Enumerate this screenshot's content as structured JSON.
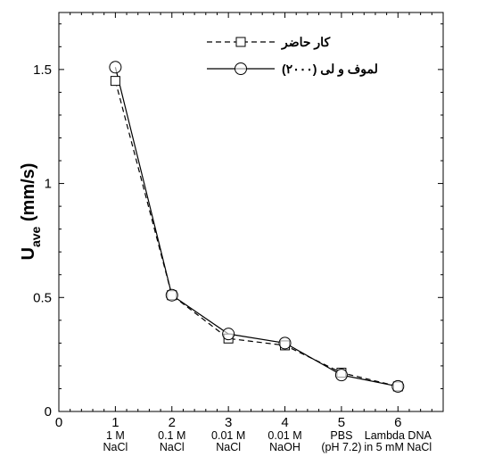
{
  "chart_data": {
    "type": "line",
    "ylabel": "U",
    "ylabel_sub": "ave",
    "ylabel_unit": " (mm/s)",
    "xlim": [
      0,
      6.8
    ],
    "ylim": [
      0,
      1.75
    ],
    "x_ticks": [
      0,
      1,
      2,
      3,
      4,
      5,
      6
    ],
    "y_ticks": [
      0,
      0.5,
      1,
      1.5
    ],
    "y_tick_labels": [
      "0",
      "0.5",
      "1",
      "1.5"
    ],
    "category_labels": [
      {
        "x": 1,
        "lines": [
          "1 M",
          "NaCl"
        ]
      },
      {
        "x": 2,
        "lines": [
          "0.1 M",
          "NaCl"
        ]
      },
      {
        "x": 3,
        "lines": [
          "0.01 M",
          "NaCl"
        ]
      },
      {
        "x": 4,
        "lines": [
          "0.01 M",
          "NaOH"
        ]
      },
      {
        "x": 5,
        "lines": [
          "PBS",
          "(pH 7.2)"
        ]
      },
      {
        "x": 6,
        "lines": [
          "Lambda DNA",
          "in 5 mM NaCl"
        ]
      }
    ],
    "series": [
      {
        "name": "کار حاضر",
        "marker": "square",
        "dash": "dashed",
        "x": [
          1,
          2,
          3,
          4,
          5,
          6
        ],
        "values": [
          1.45,
          0.51,
          0.32,
          0.29,
          0.17,
          0.11
        ]
      },
      {
        "name": "لموف و لی (۲۰۰۰)",
        "marker": "circle",
        "dash": "solid",
        "x": [
          1,
          2,
          3,
          4,
          5,
          6
        ],
        "values": [
          1.51,
          0.51,
          0.34,
          0.3,
          0.16,
          0.11
        ]
      }
    ],
    "legend_position": "top-right",
    "grid": false
  }
}
